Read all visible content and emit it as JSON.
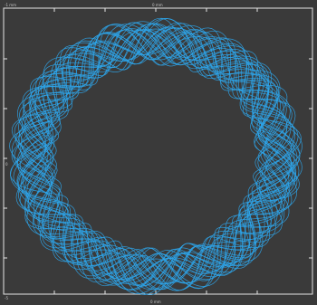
{
  "plot": {
    "background_color": "#3a3a3a",
    "frame_color": "#e6e6e6",
    "curve_color": "#2ea6ec",
    "top_axis": {
      "center_label": "0 mm",
      "left_label": "-1 mm"
    },
    "bottom_axis": {
      "center_label": "0 mm",
      "left_label": "-5"
    },
    "left_axis": {
      "mid_label": "0"
    }
  }
}
